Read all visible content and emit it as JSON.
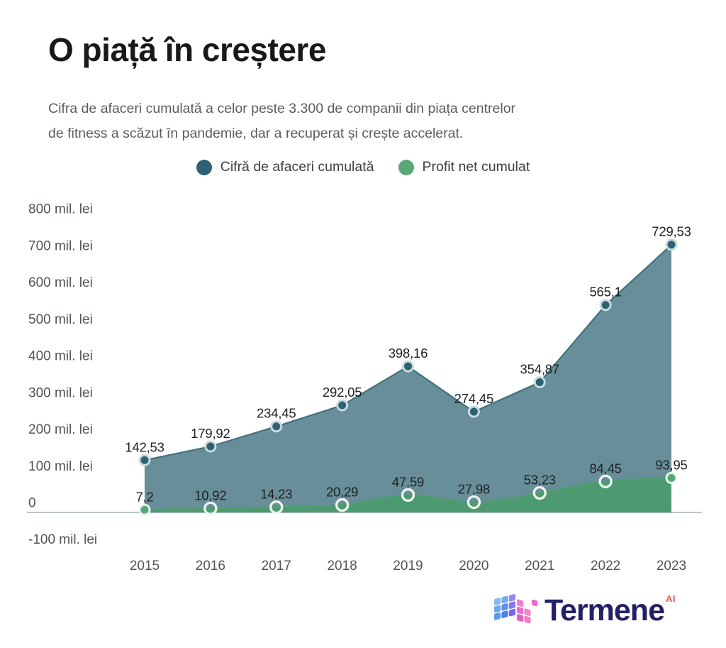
{
  "header": {
    "title": "O piață în creștere",
    "subtitle_line1": "Cifra de afaceri cumulată a celor peste 3.300 de companii din piața centrelor",
    "subtitle_line2": "de fitness a scăzut în pandemie, dar a recuperat și crește accelerat."
  },
  "legend": [
    {
      "label": "Cifră de afaceri cumulată",
      "color": "#2d6272"
    },
    {
      "label": "Profit net cumulat",
      "color": "#56a878"
    }
  ],
  "footer": {
    "brand": "Termene",
    "brand_suffix": "AI",
    "brand_color": "#232066"
  },
  "chart_data": {
    "type": "area",
    "title": "O piață în creștere",
    "unit": "mil. lei",
    "categories": [
      "2015",
      "2016",
      "2017",
      "2018",
      "2019",
      "2020",
      "2021",
      "2022",
      "2023"
    ],
    "series": [
      {
        "name": "Cifră de afaceri cumulată",
        "values": [
          142.53,
          179.92,
          234.45,
          292.05,
          398.16,
          274.45,
          354.87,
          565.1,
          729.53
        ],
        "labels": [
          "142,53",
          "179,92",
          "234,45",
          "292,05",
          "398,16",
          "274,45",
          "354,87",
          "565,1",
          "729,53"
        ],
        "color": "#2d6272",
        "fill": "rgba(45,98,114,0.72)",
        "line": "rgba(45,98,114,0.85)",
        "marker_stroke": "#c9dade",
        "shape": "straight"
      },
      {
        "name": "Profit net cumulat",
        "values": [
          7.2,
          10.92,
          14.23,
          20.29,
          47.59,
          27.98,
          53.23,
          84.45,
          93.95
        ],
        "labels": [
          "7,2",
          "10,92",
          "14,23",
          "20,29",
          "47,59",
          "27,98",
          "53,23",
          "84,45",
          "93,95"
        ],
        "color": "#56a878",
        "fill": "rgba(74,156,106,0.88)",
        "line": "#4f9e70",
        "marker_stroke": "#ebf4ec",
        "shape": "smooth"
      }
    ],
    "y_ticks": [
      {
        "value": 800,
        "label": "800 mil. lei"
      },
      {
        "value": 700,
        "label": "700 mil. lei"
      },
      {
        "value": 600,
        "label": "600 mil. lei"
      },
      {
        "value": 500,
        "label": "500 mil. lei"
      },
      {
        "value": 400,
        "label": "400 mil. lei"
      },
      {
        "value": 300,
        "label": "300 mil. lei"
      },
      {
        "value": 200,
        "label": "200 mil. lei"
      },
      {
        "value": 100,
        "label": "100 mil. lei"
      },
      {
        "value": 0,
        "label": "0"
      },
      {
        "value": -100,
        "label": "-100 mil. lei"
      }
    ],
    "ylim": [
      -100,
      800
    ],
    "grid": "zero-line-only",
    "zero_line_color": "#a9aeb1",
    "legend_position": "top-center"
  }
}
